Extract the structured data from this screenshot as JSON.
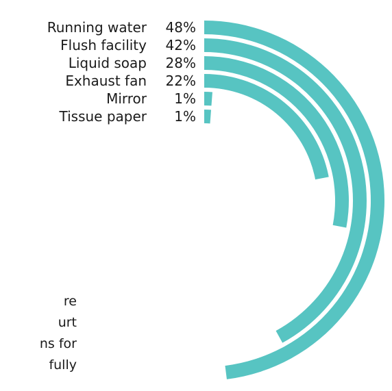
{
  "chart_data": {
    "type": "radial-bar",
    "unit": "%",
    "max_value": 100,
    "color": "#57c4c2",
    "categories": [
      "Running water",
      "Flush facility",
      "Liquid soap",
      "Exhaust fan",
      "Mirror",
      "Tissue paper"
    ],
    "values": [
      48,
      42,
      28,
      22,
      1,
      1
    ],
    "value_labels": [
      "48%",
      "42%",
      "28%",
      "22%",
      "1%",
      "1%"
    ]
  },
  "body_text_fragments": [
    "re",
    "urt",
    "ns for",
    "fully"
  ]
}
